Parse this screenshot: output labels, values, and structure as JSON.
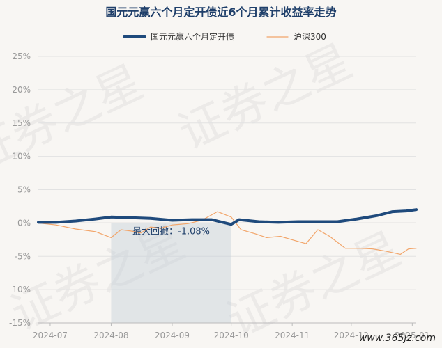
{
  "chart_data": {
    "type": "line",
    "title": "国元元赢六个月定开债近6个月累计收益率走势",
    "ylim": [
      -15,
      25
    ],
    "yticks": [
      -15,
      -10,
      -5,
      0,
      5,
      10,
      15,
      20,
      25
    ],
    "ytick_labels": [
      "-15%",
      "-10%",
      "-5%",
      "0%",
      "5%",
      "10%",
      "15%",
      "20%",
      "25%"
    ],
    "xlim": [
      "2024-06-25",
      "2025-01-03"
    ],
    "xticks": [
      "2024-07-01",
      "2024-08-01",
      "2024-09-01",
      "2024-10-01",
      "2024-11-01",
      "2024-12-01",
      "2025-01-01"
    ],
    "xtick_labels": [
      "2024-07",
      "2024-08",
      "2024-09",
      "2024-10",
      "2024-11",
      "2024-12",
      "2025-01"
    ],
    "grid": true,
    "legend_position": "top",
    "series": [
      {
        "name": "国元元赢六个月定开债",
        "color": "#1f4a7c",
        "style": "thick",
        "points": [
          [
            "2024-06-25",
            0.1
          ],
          [
            "2024-07-04",
            0.1
          ],
          [
            "2024-07-14",
            0.3
          ],
          [
            "2024-07-24",
            0.6
          ],
          [
            "2024-08-01",
            0.9
          ],
          [
            "2024-08-11",
            0.8
          ],
          [
            "2024-08-21",
            0.7
          ],
          [
            "2024-09-01",
            0.4
          ],
          [
            "2024-09-11",
            0.5
          ],
          [
            "2024-09-21",
            0.5
          ],
          [
            "2024-10-01",
            -0.2
          ],
          [
            "2024-10-05",
            0.5
          ],
          [
            "2024-10-15",
            0.2
          ],
          [
            "2024-10-25",
            0.1
          ],
          [
            "2024-11-04",
            0.2
          ],
          [
            "2024-11-14",
            0.2
          ],
          [
            "2024-11-24",
            0.2
          ],
          [
            "2024-12-04",
            0.6
          ],
          [
            "2024-12-14",
            1.1
          ],
          [
            "2024-12-22",
            1.7
          ],
          [
            "2024-12-29",
            1.8
          ],
          [
            "2025-01-03",
            2.0
          ]
        ]
      },
      {
        "name": "沪深300",
        "color": "#f2a56a",
        "style": "thin",
        "points": [
          [
            "2024-06-25",
            0.0
          ],
          [
            "2024-07-04",
            -0.3
          ],
          [
            "2024-07-14",
            -0.9
          ],
          [
            "2024-07-24",
            -1.3
          ],
          [
            "2024-08-01",
            -2.2
          ],
          [
            "2024-08-06",
            -1.0
          ],
          [
            "2024-08-11",
            -1.2
          ],
          [
            "2024-08-16",
            -1.5
          ],
          [
            "2024-08-21",
            -0.6
          ],
          [
            "2024-08-26",
            -0.8
          ],
          [
            "2024-09-01",
            -0.3
          ],
          [
            "2024-09-09",
            -0.1
          ],
          [
            "2024-09-16",
            0.4
          ],
          [
            "2024-09-24",
            1.7
          ],
          [
            "2024-10-01",
            0.9
          ],
          [
            "2024-10-06",
            -1.0
          ],
          [
            "2024-10-13",
            -1.6
          ],
          [
            "2024-10-19",
            -2.2
          ],
          [
            "2024-10-26",
            -2.0
          ],
          [
            "2024-11-02",
            -2.6
          ],
          [
            "2024-11-08",
            -3.1
          ],
          [
            "2024-11-14",
            -1.0
          ],
          [
            "2024-11-20",
            -2.0
          ],
          [
            "2024-11-28",
            -3.8
          ],
          [
            "2024-12-06",
            -3.8
          ],
          [
            "2024-12-12",
            -3.9
          ],
          [
            "2024-12-18",
            -4.2
          ],
          [
            "2024-12-26",
            -4.7
          ],
          [
            "2024-12-30",
            -3.9
          ],
          [
            "2025-01-03",
            -3.8
          ]
        ]
      }
    ],
    "drawdown": {
      "label": "最大回撤：-1.08%",
      "start": "2024-08-01",
      "end": "2024-10-01"
    }
  },
  "watermark": "证券之星",
  "footer": "www.365jz.com"
}
